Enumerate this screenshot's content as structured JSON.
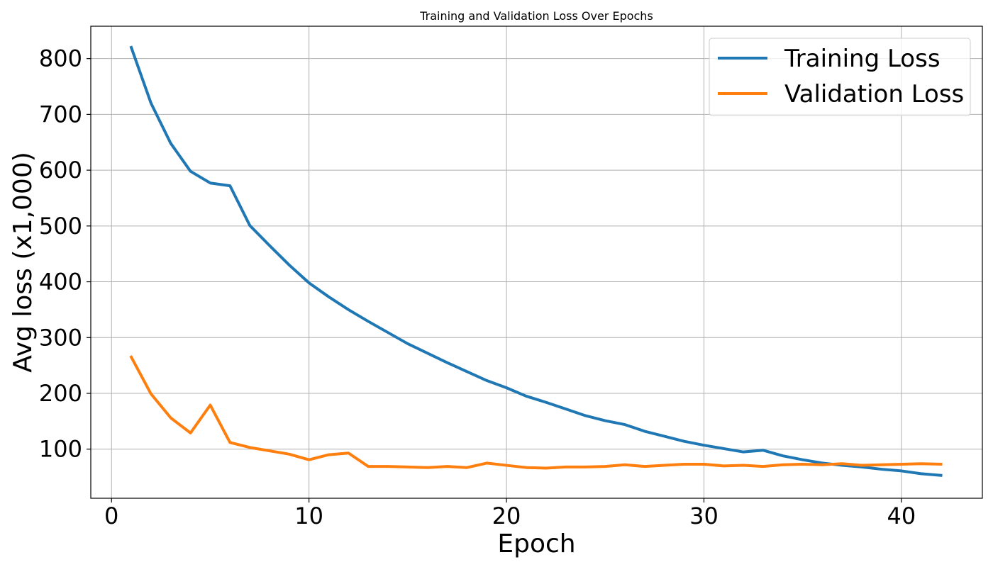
{
  "chart_data": {
    "type": "line",
    "title": "Training and Validation Loss Over Epochs",
    "xlabel": "Epoch",
    "ylabel": "Avg loss (x1,000)",
    "xlim": [
      -1.05,
      44.1
    ],
    "ylim": [
      12,
      858
    ],
    "xticks": [
      0,
      10,
      20,
      30,
      40
    ],
    "yticks": [
      100,
      200,
      300,
      400,
      500,
      600,
      700,
      800
    ],
    "grid": true,
    "legend_position": "top-right",
    "x": [
      1,
      2,
      3,
      4,
      5,
      6,
      7,
      8,
      9,
      10,
      11,
      12,
      13,
      14,
      15,
      16,
      17,
      18,
      19,
      20,
      21,
      22,
      23,
      24,
      25,
      26,
      27,
      28,
      29,
      30,
      31,
      32,
      33,
      34,
      35,
      36,
      37,
      38,
      39,
      40,
      41,
      42
    ],
    "series": [
      {
        "name": "Training Loss",
        "color": "#1f77b4",
        "values": [
          820,
          720,
          648,
          598,
          577,
          572,
          501,
          465,
          430,
          398,
          373,
          350,
          329,
          309,
          289,
          272,
          255,
          239,
          223,
          210,
          195,
          184,
          172,
          160,
          151,
          144,
          132,
          123,
          114,
          107,
          101,
          95,
          98,
          88,
          81,
          75,
          71,
          68,
          64,
          61,
          56,
          53
        ]
      },
      {
        "name": "Validation Loss",
        "color": "#ff7f0e",
        "values": [
          265,
          199,
          156,
          129,
          179,
          112,
          103,
          97,
          91,
          81,
          90,
          93,
          69,
          69,
          68,
          67,
          69,
          67,
          75,
          71,
          67,
          66,
          68,
          68,
          69,
          72,
          69,
          71,
          73,
          73,
          70,
          71,
          69,
          72,
          73,
          72,
          74,
          71,
          72,
          73,
          74,
          73
        ]
      }
    ]
  }
}
